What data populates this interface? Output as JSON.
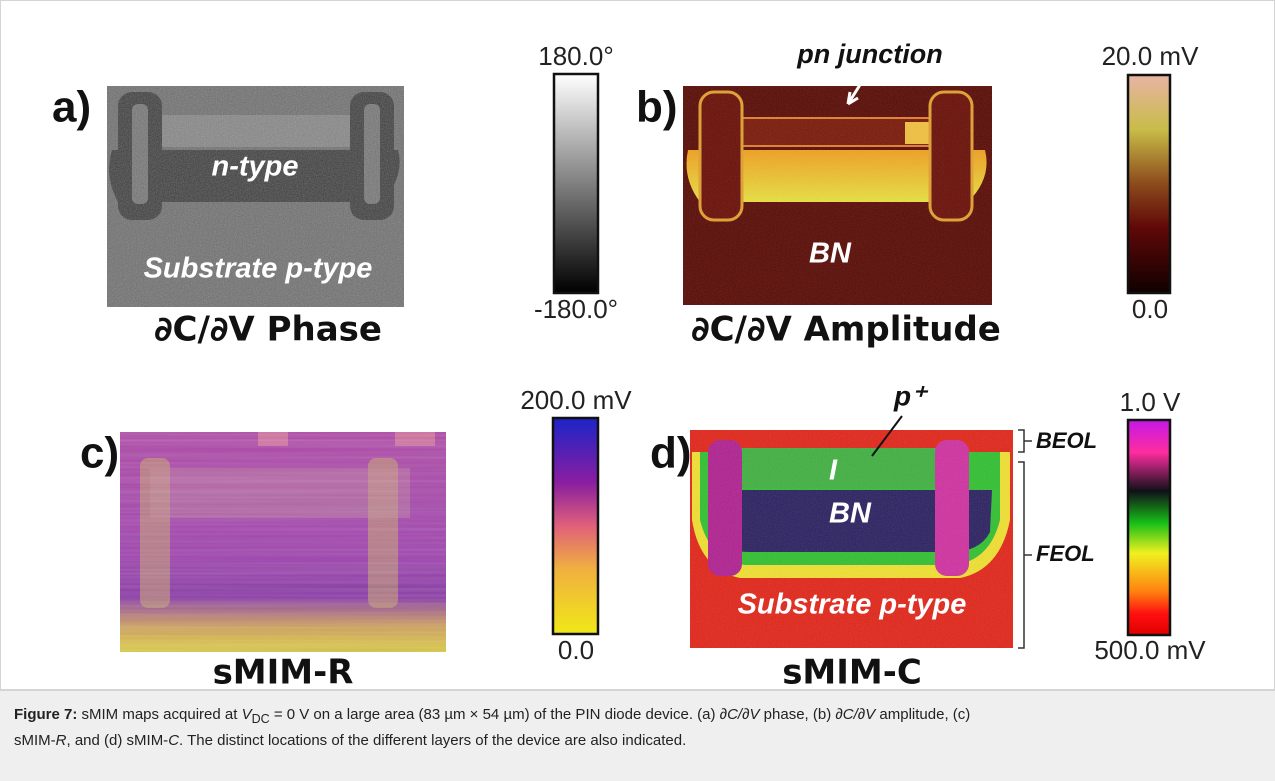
{
  "panels": [
    {
      "label": "a)",
      "title": "∂C/∂V Phase",
      "annotations": [
        "n-type",
        "Substrate p-type"
      ],
      "colorbar": {
        "max": "180.0°",
        "min": "-180.0°"
      }
    },
    {
      "label": "b)",
      "title": "∂C/∂V Amplitude",
      "annotations": [
        "pn junction",
        "BN"
      ],
      "colorbar": {
        "max": "20.0 mV",
        "min": "0.0"
      }
    },
    {
      "label": "c)",
      "title": "sMIM-R",
      "annotations": [],
      "colorbar": {
        "max": "200.0 mV",
        "min": "0.0"
      }
    },
    {
      "label": "d)",
      "title": "sMIM-C",
      "annotations": [
        "p⁺",
        "I",
        "BN",
        "Substrate p-type"
      ],
      "colorbar": {
        "max": "1.0 V",
        "min": "500.0 mV"
      }
    }
  ],
  "layers": [
    "BEOL",
    "FEOL"
  ],
  "caption": {
    "runs": [
      "Figure 7:",
      " sMIM maps acquired at ",
      "V",
      "DC",
      " = 0 V on a large area (83 µm × 54 µm) of the PIN diode device. (a) ",
      "∂C/∂V",
      " phase, (b) ",
      "∂C/∂V",
      " amplitude, (c) sMIM-",
      "R",
      ", and (d) sMIM-",
      "C",
      ". The distinct locations of the different layers of the device are also indicated."
    ]
  }
}
